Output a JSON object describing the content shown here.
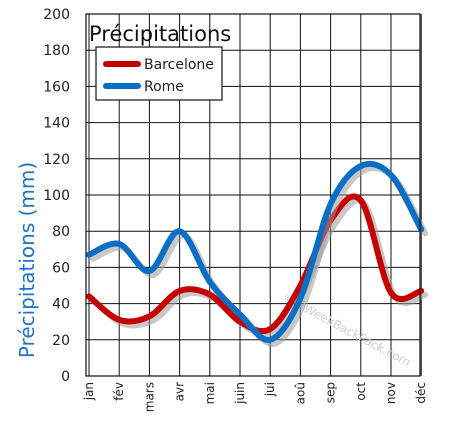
{
  "chart_data": {
    "type": "line",
    "title": "Précipitations",
    "ylabel": "Précipitations (mm)",
    "xlabel": "",
    "ylim": [
      0,
      200
    ],
    "yticks": [
      0,
      20,
      40,
      60,
      80,
      100,
      120,
      140,
      160,
      180,
      200
    ],
    "categories": [
      "jan",
      "fév",
      "mars",
      "avr",
      "mai",
      "juin",
      "jui",
      "aoû",
      "sep",
      "oct",
      "nov",
      "déc"
    ],
    "grid": true,
    "legend_position": "top-left",
    "series": [
      {
        "name": "Barcelone",
        "color": "#c40000",
        "values": [
          44,
          31,
          33,
          47,
          45,
          30,
          26,
          50,
          86,
          97,
          46,
          47
        ]
      },
      {
        "name": "Rome",
        "color": "#0a6fc4",
        "values": [
          67,
          73,
          58,
          80,
          52,
          34,
          20,
          43,
          95,
          116,
          111,
          81
        ]
      }
    ],
    "watermark": "© 2WeekBackPack.com"
  }
}
